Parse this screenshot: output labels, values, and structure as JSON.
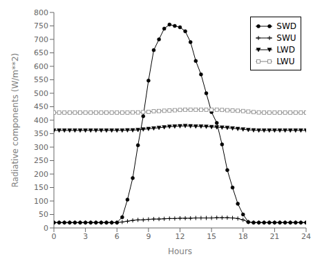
{
  "chart_data": {
    "type": "line",
    "xlabel": "Hours",
    "ylabel": "Radiative components (W/m**2)",
    "x": [
      0,
      0.5,
      1,
      1.5,
      2,
      2.5,
      3,
      3.5,
      4,
      4.5,
      5,
      5.5,
      6,
      6.5,
      7,
      7.5,
      8,
      8.5,
      9,
      9.5,
      10,
      10.5,
      11,
      11.5,
      12,
      12.5,
      13,
      13.5,
      14,
      14.5,
      15,
      15.5,
      16,
      16.5,
      17,
      17.5,
      18,
      18.5,
      19,
      19.5,
      20,
      20.5,
      21,
      21.5,
      22,
      22.5,
      23,
      23.5,
      24
    ],
    "xlim": [
      0,
      24
    ],
    "ylim": [
      0,
      800
    ],
    "xticks": [
      0,
      3,
      6,
      9,
      12,
      15,
      18,
      21,
      24
    ],
    "yticks": [
      0,
      50,
      100,
      150,
      200,
      250,
      300,
      350,
      400,
      450,
      500,
      550,
      600,
      650,
      700,
      750,
      800
    ],
    "grid": false,
    "legend": "upper right",
    "series": [
      {
        "name": "SWD",
        "color": "black",
        "marker": "circle",
        "values": [
          20,
          20,
          20,
          20,
          20,
          20,
          20,
          20,
          20,
          20,
          20,
          20,
          20,
          40,
          105,
          185,
          307,
          415,
          547,
          660,
          700,
          740,
          755,
          750,
          745,
          730,
          690,
          620,
          570,
          500,
          430,
          390,
          310,
          215,
          150,
          90,
          50,
          22,
          20,
          20,
          20,
          20,
          20,
          20,
          20,
          20,
          20,
          20,
          20
        ]
      },
      {
        "name": "SWU",
        "color": "black",
        "marker": "plus",
        "values": [
          20,
          20,
          20,
          20,
          20,
          20,
          20,
          20,
          20,
          20,
          20,
          20,
          20,
          22,
          25,
          28,
          30,
          30,
          32,
          33,
          33,
          34,
          35,
          35,
          36,
          36,
          36,
          37,
          37,
          37,
          37,
          38,
          38,
          38,
          37,
          35,
          30,
          22,
          20,
          20,
          20,
          20,
          20,
          20,
          20,
          20,
          20,
          20,
          20
        ]
      },
      {
        "name": "LWD",
        "color": "black",
        "marker": "triangle-down",
        "values": [
          362,
          362,
          362,
          362,
          362,
          362,
          362,
          362,
          362,
          362,
          362,
          362,
          362,
          362,
          363,
          363,
          364,
          366,
          368,
          370,
          372,
          374,
          376,
          377,
          378,
          379,
          378,
          377,
          377,
          376,
          375,
          374,
          373,
          372,
          370,
          368,
          366,
          364,
          363,
          362,
          362,
          362,
          362,
          362,
          362,
          362,
          362,
          362,
          362
        ]
      },
      {
        "name": "LWU",
        "color": "gray",
        "marker": "square",
        "values": [
          428,
          428,
          428,
          428,
          428,
          428,
          428,
          428,
          428,
          428,
          428,
          428,
          428,
          428,
          428,
          429,
          429,
          430,
          431,
          433,
          434,
          435,
          436,
          437,
          438,
          439,
          439,
          439,
          439,
          439,
          439,
          439,
          438,
          437,
          436,
          435,
          434,
          432,
          430,
          429,
          428,
          428,
          428,
          428,
          428,
          428,
          428,
          428,
          428
        ]
      }
    ]
  }
}
